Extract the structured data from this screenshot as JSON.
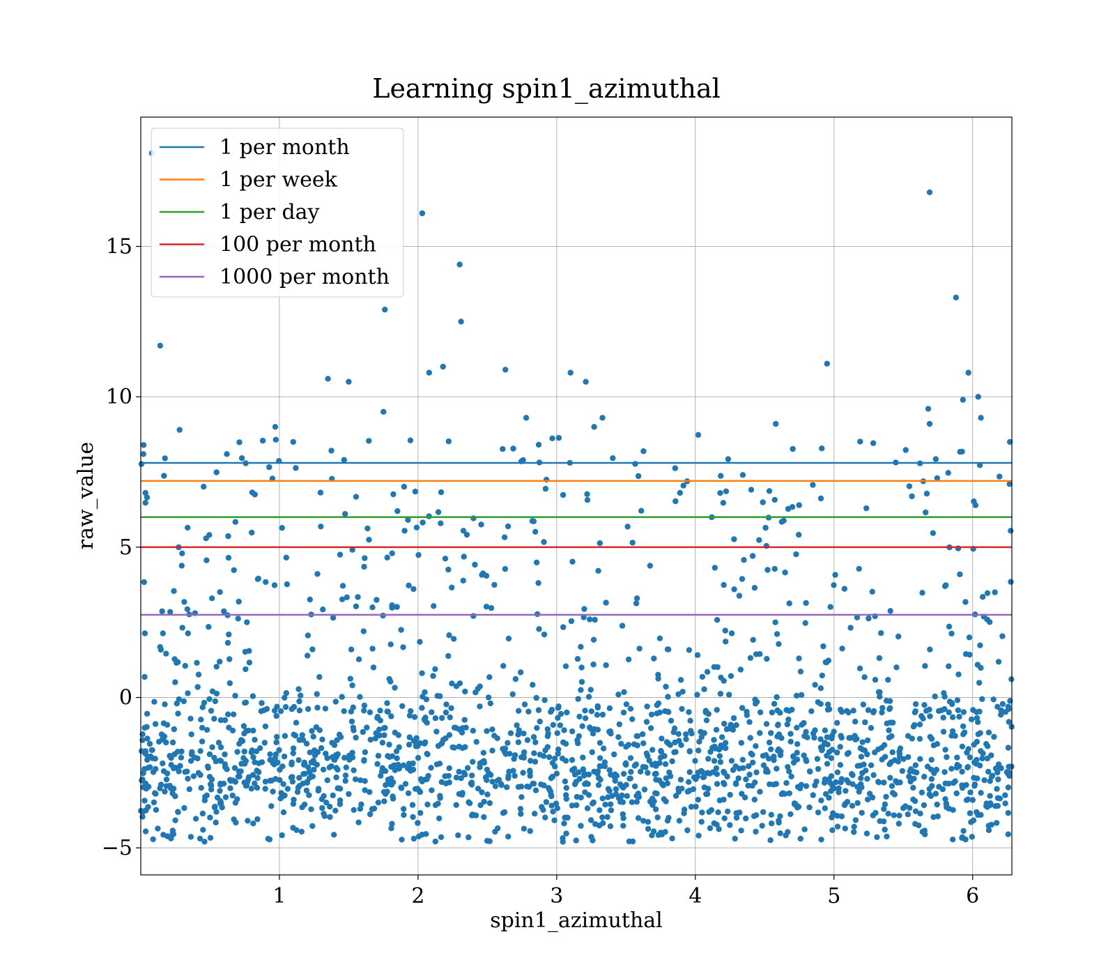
{
  "chart_data": {
    "type": "scatter",
    "title": "Learning spin1_azimuthal",
    "xlabel": "spin1_azimuthal",
    "ylabel": "raw_value",
    "xlim": [
      0,
      6.283
    ],
    "ylim": [
      -5.9,
      19.3
    ],
    "x_ticks": [
      1,
      2,
      3,
      4,
      5,
      6
    ],
    "y_ticks": [
      -5,
      0,
      5,
      10,
      15
    ],
    "x_tick_labels": [
      "1",
      "2",
      "3",
      "4",
      "5",
      "6"
    ],
    "y_tick_labels": [
      "−5",
      "0",
      "5",
      "10",
      "15"
    ],
    "grid": true,
    "legend_position": "top-left",
    "point_color": "#1f77b4",
    "thresholds": [
      {
        "name": "1 per month",
        "value": 7.8,
        "color": "#1f77b4"
      },
      {
        "name": "1 per week",
        "value": 7.2,
        "color": "#ff7f0e"
      },
      {
        "name": "1 per day",
        "value": 6.0,
        "color": "#2ca02c"
      },
      {
        "name": "100 per month",
        "value": 5.0,
        "color": "#d62728"
      },
      {
        "name": "1000 per month",
        "value": 2.75,
        "color": "#9467bd"
      }
    ],
    "points": [
      {
        "x": 0.08,
        "y": 18.1
      },
      {
        "x": 0.14,
        "y": 11.7
      },
      {
        "x": 0.28,
        "y": 8.9
      },
      {
        "x": 0.97,
        "y": 9.0
      },
      {
        "x": 1.1,
        "y": 8.5
      },
      {
        "x": 1.35,
        "y": 10.6
      },
      {
        "x": 1.5,
        "y": 10.5
      },
      {
        "x": 1.75,
        "y": 9.5
      },
      {
        "x": 1.76,
        "y": 12.9
      },
      {
        "x": 2.03,
        "y": 16.1
      },
      {
        "x": 2.08,
        "y": 10.8
      },
      {
        "x": 2.18,
        "y": 11.0
      },
      {
        "x": 2.3,
        "y": 14.4
      },
      {
        "x": 2.31,
        "y": 12.5
      },
      {
        "x": 2.63,
        "y": 10.9
      },
      {
        "x": 2.78,
        "y": 9.3
      },
      {
        "x": 3.1,
        "y": 10.8
      },
      {
        "x": 3.21,
        "y": 10.5
      },
      {
        "x": 3.27,
        "y": 9.0
      },
      {
        "x": 3.33,
        "y": 9.3
      },
      {
        "x": 4.58,
        "y": 9.1
      },
      {
        "x": 4.95,
        "y": 11.1
      },
      {
        "x": 5.69,
        "y": 16.8
      },
      {
        "x": 5.68,
        "y": 9.6
      },
      {
        "x": 5.69,
        "y": 9.1
      },
      {
        "x": 5.88,
        "y": 13.3
      },
      {
        "x": 5.93,
        "y": 9.9
      },
      {
        "x": 5.97,
        "y": 10.8
      },
      {
        "x": 6.04,
        "y": 10.0
      },
      {
        "x": 6.06,
        "y": 9.3
      }
    ],
    "bulk_distribution": {
      "y_center": -2.5,
      "y_spread": 1.2,
      "y_min": -4.8,
      "count": 1500
    },
    "mid_distribution": {
      "y_min": -0.5,
      "y_max": 8.8,
      "count": 520
    }
  }
}
